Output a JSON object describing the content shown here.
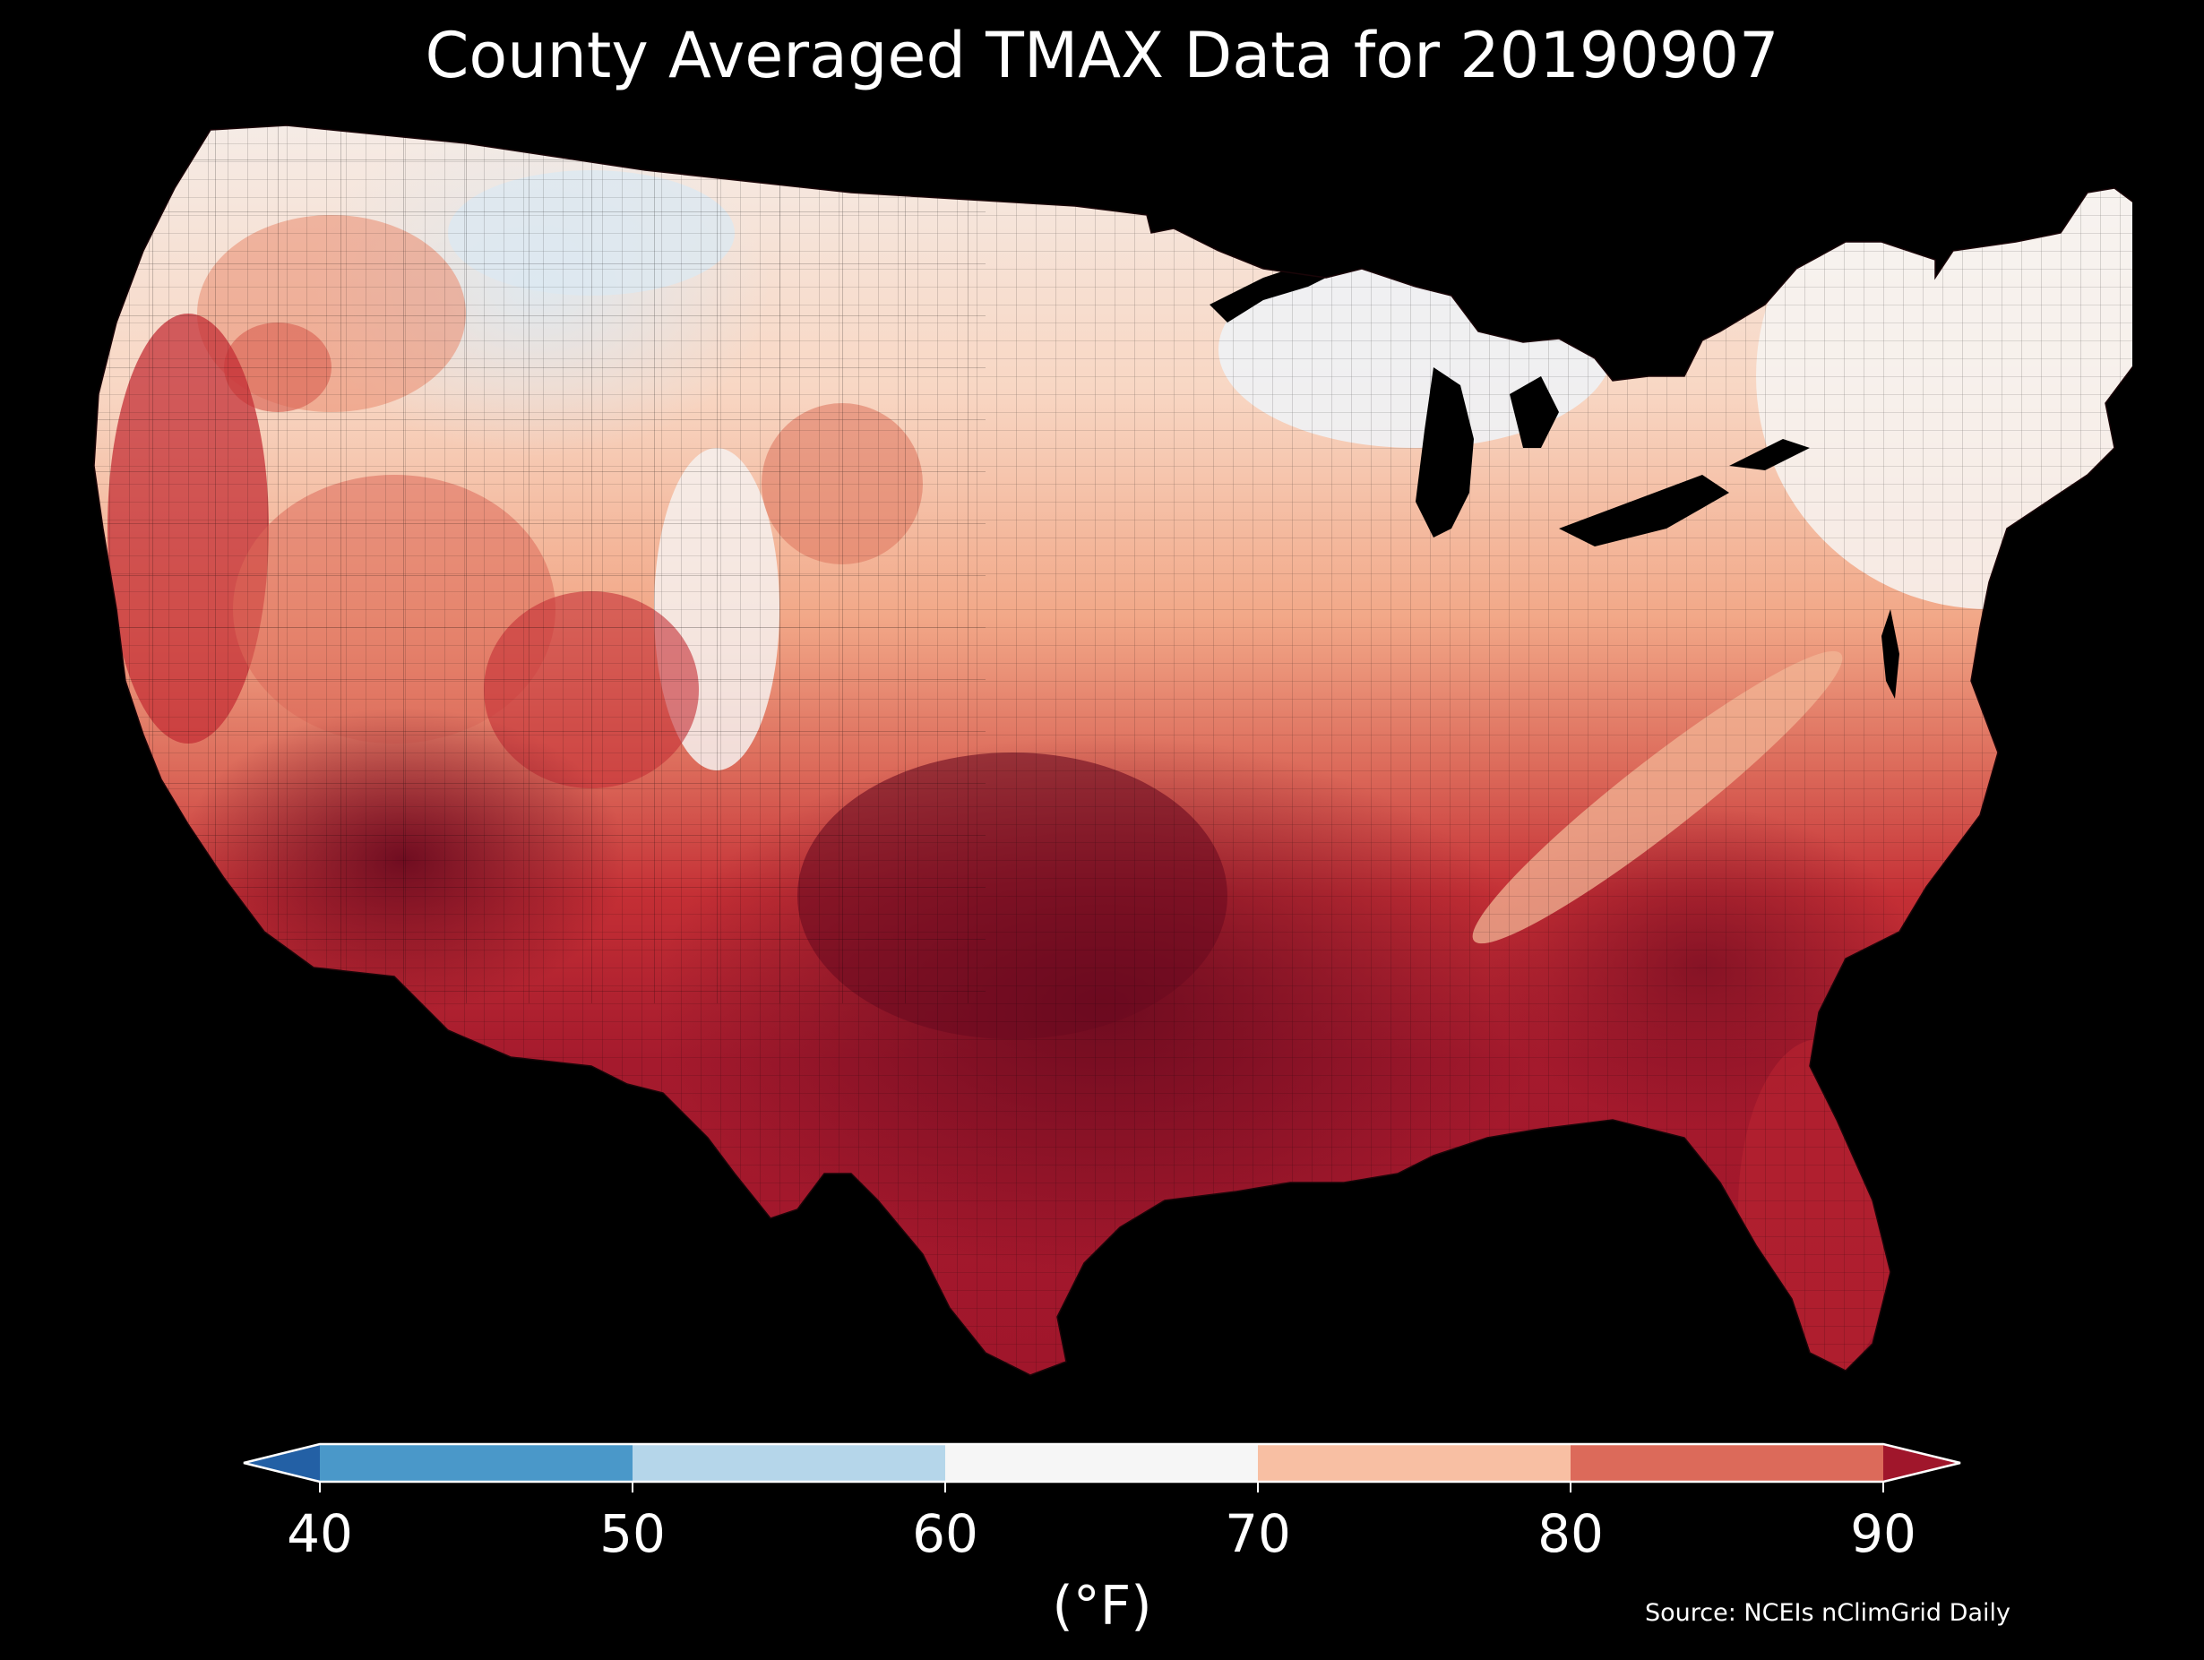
{
  "title": "County Averaged TMAX Data for 20190907",
  "colorbar": {
    "ticks": [
      "40",
      "50",
      "60",
      "70",
      "80",
      "90"
    ],
    "unit": "(°F)",
    "extend": "both",
    "bins": [
      {
        "range": [
          40,
          50
        ],
        "color": "#4a98c9"
      },
      {
        "range": [
          50,
          60
        ],
        "color": "#b5d6ea"
      },
      {
        "range": [
          60,
          70
        ],
        "color": "#f6f6f6"
      },
      {
        "range": [
          70,
          80
        ],
        "color": "#f8bfa3"
      },
      {
        "range": [
          80,
          90
        ],
        "color": "#dc6a5a"
      }
    ],
    "under_color": "#2360a5",
    "over_color": "#a0162b"
  },
  "source": "Source: NCEIs nClimGrid Daily",
  "map": {
    "region": "contiguous-united-states",
    "level": "county",
    "variable": "TMAX",
    "date": "20190907",
    "background": "#000000",
    "zone_colors": {
      "coolest": "#e4eef4",
      "cool": "#f6f6f6",
      "mild": "#f8cdb6",
      "warm": "#f2a888",
      "hot": "#dc6a5a",
      "very_hot": "#c42f35",
      "extreme": "#a0162b",
      "extreme_core": "#6b0a1f"
    }
  }
}
